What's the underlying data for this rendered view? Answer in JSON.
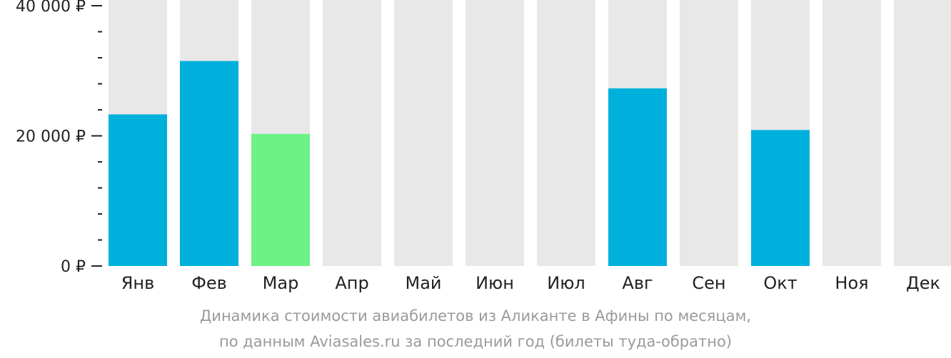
{
  "chart_data": {
    "type": "bar",
    "title": "",
    "xlabel": "",
    "ylabel": "",
    "categories": [
      "Янв",
      "Фев",
      "Мар",
      "Апр",
      "Май",
      "Июн",
      "Июл",
      "Авг",
      "Сен",
      "Окт",
      "Ноя",
      "Дек"
    ],
    "values": [
      23300,
      31500,
      20300,
      null,
      null,
      null,
      null,
      27300,
      null,
      20900,
      null,
      null
    ],
    "ylim": [
      0,
      40000
    ],
    "y_ticks": [
      {
        "value": 40000,
        "label": "40 000 ₽"
      },
      {
        "value": 20000,
        "label": "20 000 ₽"
      },
      {
        "value": 0,
        "label": "0 ₽"
      }
    ],
    "y_minor_step": 4000,
    "colors": {
      "bar": "#00b0dc",
      "highlight": "#6cf286",
      "background_column": "#e8e8e8",
      "axis": "#222222"
    },
    "highlight_category": "Мар",
    "grid": false,
    "legend": "none"
  },
  "caption": {
    "line1": "Динамика стоимости авиабилетов из Аликанте в Афины по месяцам,",
    "line2": "по данным Aviasales.ru за последний год (билеты туда-обратно)"
  }
}
